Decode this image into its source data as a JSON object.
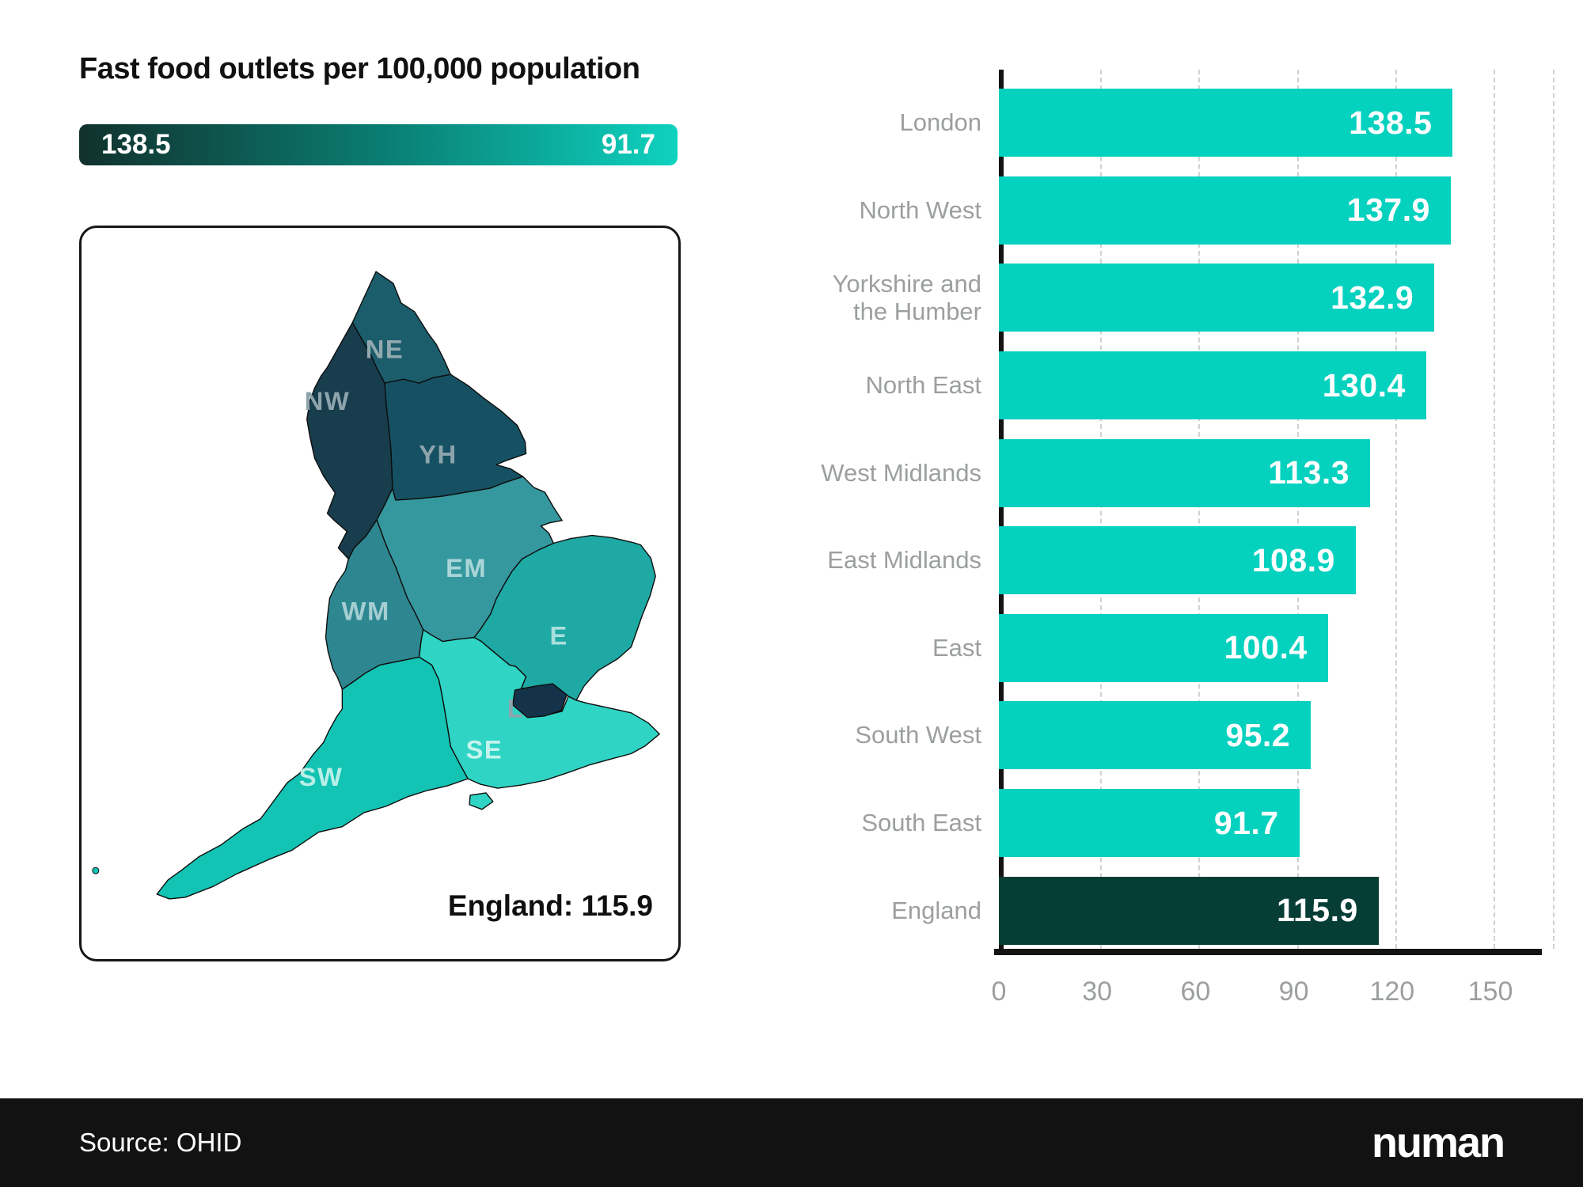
{
  "title": "Fast food outlets per 100,000 population",
  "legend": {
    "max_label": "138.5",
    "min_label": "91.7",
    "gradient_start": "#11312d",
    "gradient_mid": "#0a7f74",
    "gradient_end": "#0ed2bf"
  },
  "map": {
    "note_label": "England: 115.9",
    "regions": [
      {
        "code": "L",
        "name": "London",
        "value": 138.5,
        "color": "#14334a",
        "label_color": "#8ea4ad"
      },
      {
        "code": "NW",
        "name": "North West",
        "value": 137.9,
        "color": "#183d4c",
        "label_color": "#8ea4ad"
      },
      {
        "code": "YH",
        "name": "Yorkshire and the Humber",
        "value": 132.9,
        "color": "#155162",
        "label_color": "#8ea4ad"
      },
      {
        "code": "NE",
        "name": "North East",
        "value": 130.4,
        "color": "#1c5d6b",
        "label_color": "#93a9b0"
      },
      {
        "code": "WM",
        "name": "West Midlands",
        "value": 113.3,
        "color": "#2e8790",
        "label_color": "#a5ced2"
      },
      {
        "code": "EM",
        "name": "East Midlands",
        "value": 108.9,
        "color": "#35989f",
        "label_color": "#abd6d8"
      },
      {
        "code": "E",
        "name": "East",
        "value": 100.4,
        "color": "#1fa9a4",
        "label_color": "#aadedb"
      },
      {
        "code": "SW",
        "name": "South West",
        "value": 95.2,
        "color": "#13c3b4",
        "label_color": "#baefe8"
      },
      {
        "code": "SE",
        "name": "South East",
        "value": 91.7,
        "color": "#2fd4c4",
        "label_color": "#c4f4ed"
      }
    ]
  },
  "chart_data": {
    "type": "bar",
    "orientation": "horizontal",
    "title": "Fast food outlets per 100,000 population",
    "categories": [
      "London",
      "North West",
      "Yorkshire and the Humber",
      "North East",
      "West Midlands",
      "East Midlands",
      "East",
      "South West",
      "South East",
      "England"
    ],
    "values": [
      138.5,
      137.9,
      132.9,
      130.4,
      113.3,
      108.9,
      100.4,
      95.2,
      91.7,
      115.9
    ],
    "bar_colors": [
      "#04d1be",
      "#04d1be",
      "#04d1be",
      "#04d1be",
      "#04d1be",
      "#04d1be",
      "#04d1be",
      "#04d1be",
      "#04d1be",
      "#063e36"
    ],
    "xlim": [
      0,
      150
    ],
    "xticks": [
      0,
      30,
      60,
      90,
      120,
      150
    ],
    "grid": "dashed-vertical",
    "value_label_color": "#ffffff",
    "axis_color": "#141414",
    "tick_label_color": "#9c9fa0"
  },
  "footer": {
    "source": "Source: OHID",
    "brand": "numan"
  }
}
